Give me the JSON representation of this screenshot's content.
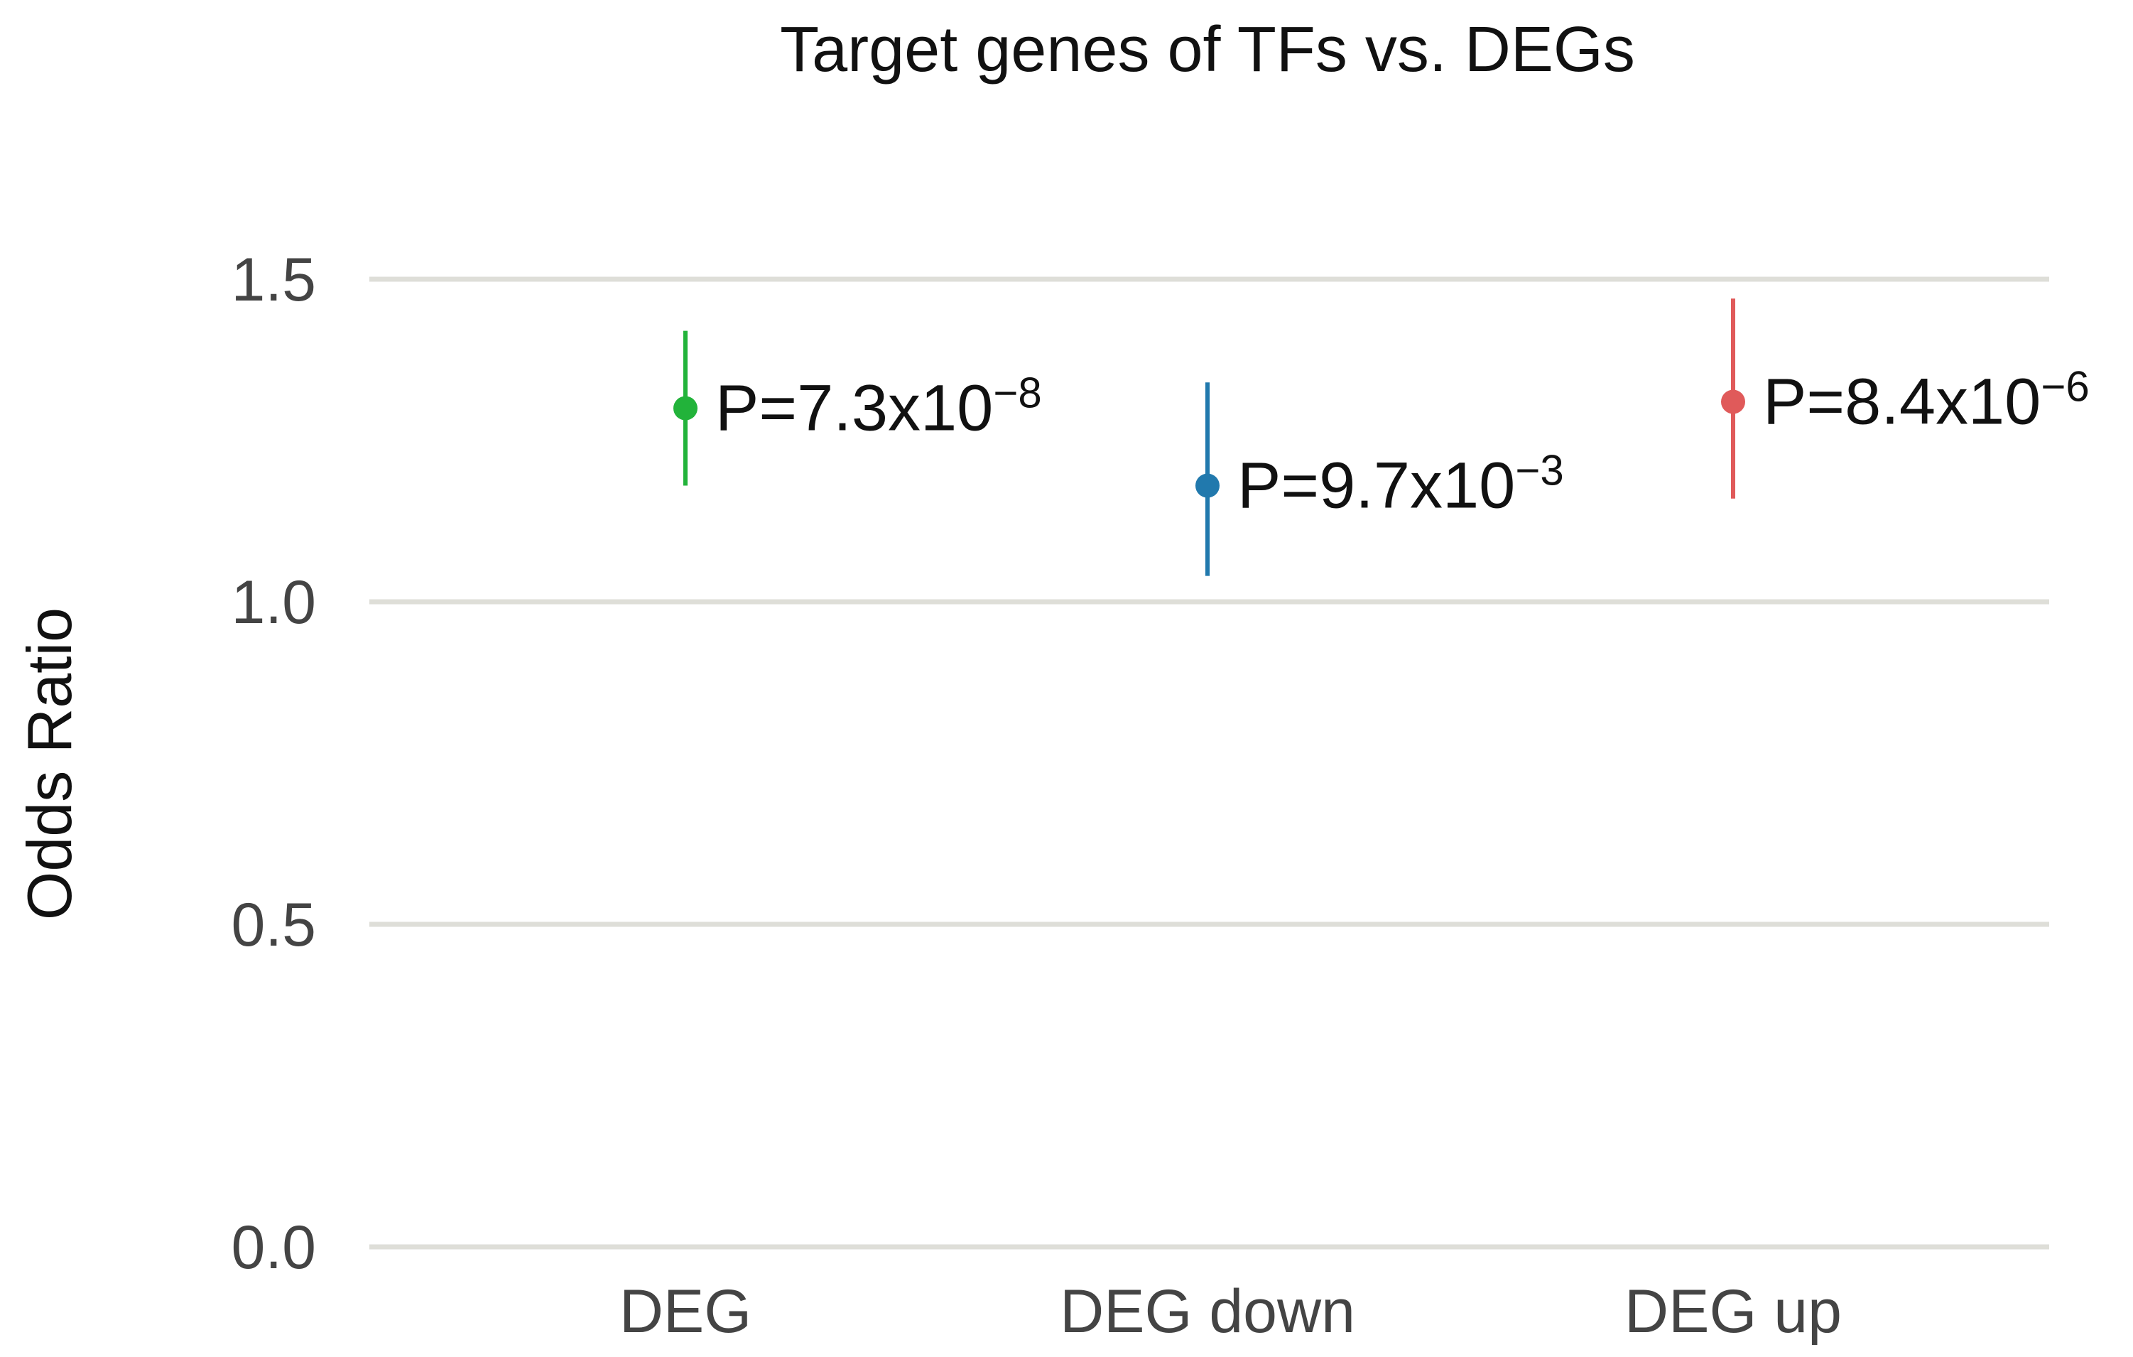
{
  "chart_data": {
    "type": "scatter",
    "title": "Target genes of TFs vs. DEGs",
    "xlabel": "",
    "ylabel": "Odds Ratio",
    "ylim": [
      0.0,
      1.6
    ],
    "yticks": [
      0.0,
      0.5,
      1.0,
      1.5
    ],
    "ytick_labels": [
      "0.0",
      "0.5",
      "1.0",
      "1.5"
    ],
    "grid": true,
    "categories": [
      "DEG",
      "DEG down",
      "DEG up"
    ],
    "series": [
      {
        "name": "DEG",
        "value": 1.3,
        "ci_low": 1.18,
        "ci_high": 1.42,
        "color": "#22b33a",
        "p_base": "P=7.3x10",
        "p_exp": "−8"
      },
      {
        "name": "DEG down",
        "value": 1.18,
        "ci_low": 1.04,
        "ci_high": 1.34,
        "color": "#2179ad",
        "p_base": "P=9.7x10",
        "p_exp": "−3"
      },
      {
        "name": "DEG up",
        "value": 1.31,
        "ci_low": 1.16,
        "ci_high": 1.47,
        "color": "#e05a5a",
        "p_base": "P=8.4x10",
        "p_exp": "−6"
      }
    ]
  }
}
